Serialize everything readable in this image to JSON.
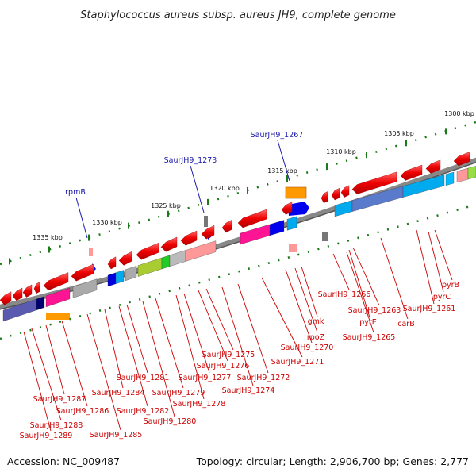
{
  "title": "Staphylococcus aureus subsp. aureus JH9, complete genome",
  "footer": {
    "accession": "Accession: NC_009487",
    "summary": "Topology: circular; Length: 2,906,700 bp; Genes: 2,777"
  },
  "scale_labels": [
    "1300 kbp",
    "1305 kbp",
    "1310 kbp",
    "1315 kbp",
    "1320 kbp",
    "1325 kbp",
    "1330 kbp",
    "1335 kbp"
  ],
  "blue_labels": [
    "SaurJH9_1267",
    "SaurJH9_1273",
    "rpmB"
  ],
  "gene_labels": [
    "pyrB",
    "pyrC",
    "SaurJH9_1261",
    "carB",
    "SaurJH9_1263",
    "pyrE",
    "SaurJH9_1265",
    "SaurJH9_1266",
    "gmk",
    "rpoZ",
    "SaurJH9_1270",
    "SaurJH9_1271",
    "SaurJH9_1272",
    "SaurJH9_1274",
    "SaurJH9_1275",
    "SaurJH9_1276",
    "SaurJH9_1277",
    "SaurJH9_1278",
    "SaurJH9_1279",
    "SaurJH9_1280",
    "SaurJH9_1281",
    "SaurJH9_1282",
    "SaurJH9_1284",
    "SaurJH9_1285",
    "SaurJH9_1286",
    "SaurJH9_1287",
    "SaurJH9_1288",
    "SaurJH9_1289"
  ],
  "colors": {
    "gene_red": "#ee0000",
    "backbone": "#888888",
    "scale_green": "#1a7a1a",
    "label_red": "#cc0000",
    "label_blue": "#1a1aaa"
  }
}
